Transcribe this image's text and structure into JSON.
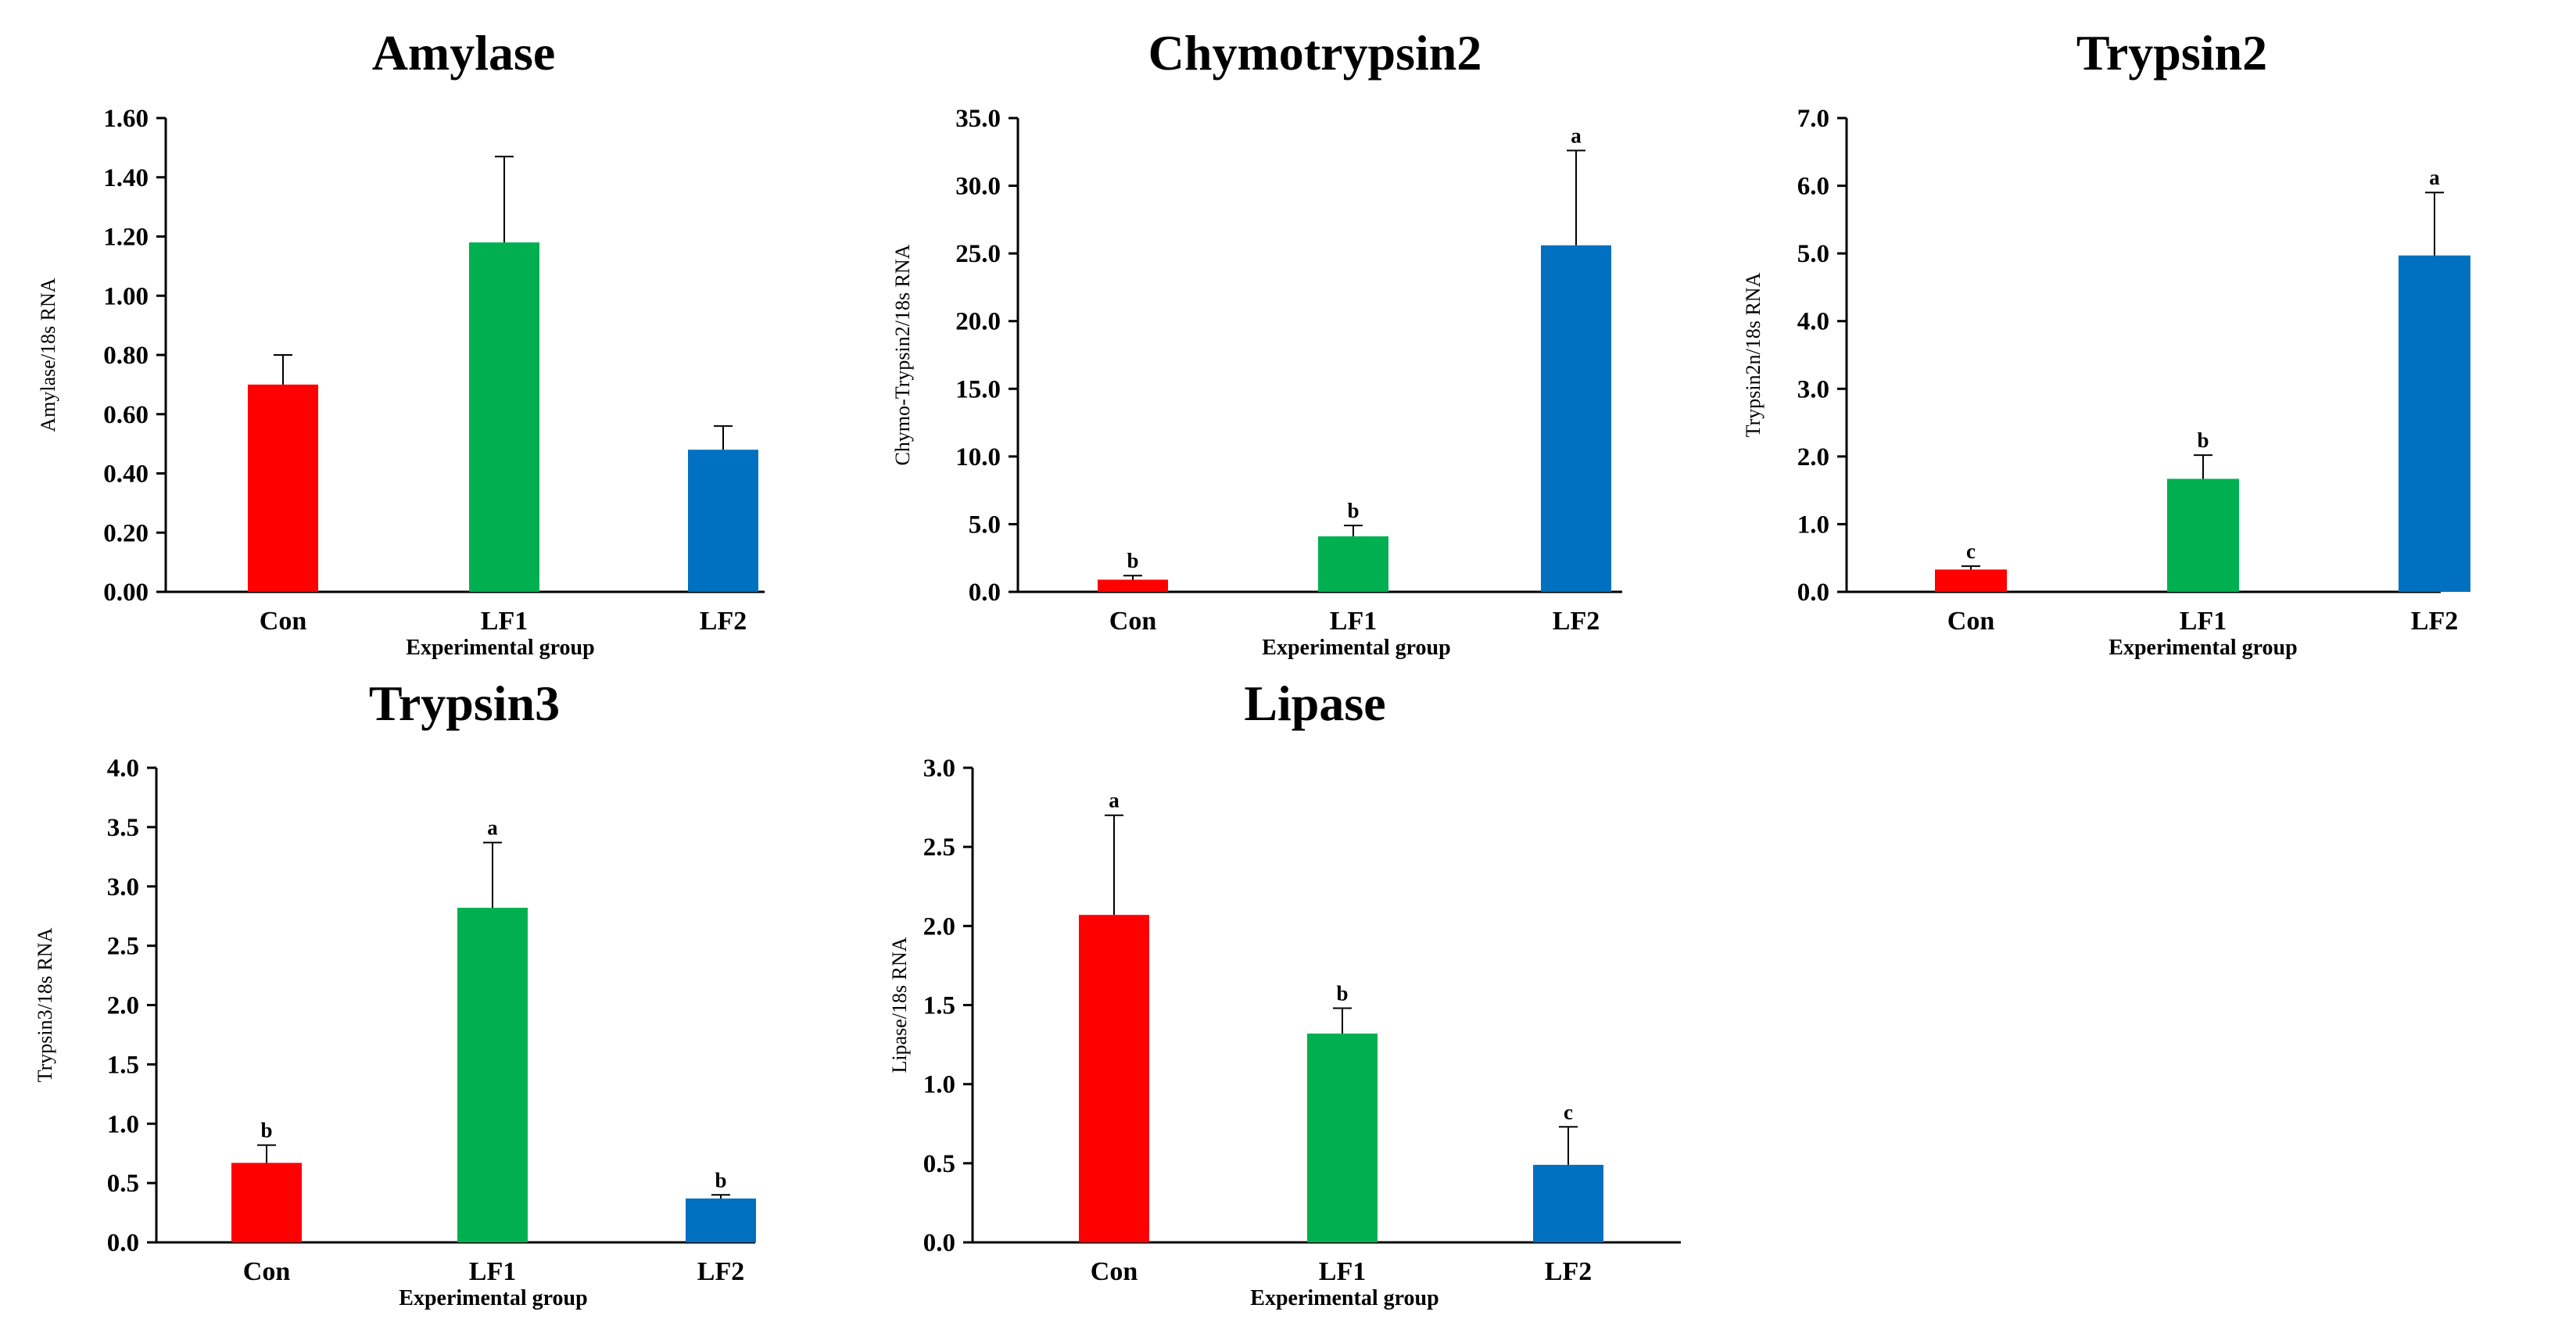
{
  "chart_data": [
    {
      "type": "bar",
      "title": "Amylase",
      "ylabel": "Amylase/18s RNA",
      "xlabel": "Experimental group",
      "categories": [
        "Con",
        "LF1",
        "LF2"
      ],
      "values": [
        0.7,
        1.18,
        0.48
      ],
      "errors": [
        0.1,
        0.29,
        0.08
      ],
      "sig_labels": [
        "",
        "",
        ""
      ],
      "ylim": [
        0,
        1.6
      ],
      "yticks": [
        "0.00",
        "0.20",
        "0.40",
        "0.60",
        "0.80",
        "1.00",
        "1.20",
        "1.40",
        "1.60"
      ],
      "colors": [
        "#ff0000",
        "#00b050",
        "#0070c0"
      ]
    },
    {
      "type": "bar",
      "title": "Chymotrypsin2",
      "ylabel": "Chymo-Trypsin2/18s RNA",
      "xlabel": "Experimental group",
      "categories": [
        "Con",
        "LF1",
        "LF2"
      ],
      "values": [
        0.9,
        4.1,
        25.6
      ],
      "errors": [
        0.3,
        0.8,
        7.0
      ],
      "sig_labels": [
        "b",
        "b",
        "a"
      ],
      "ylim": [
        0,
        35
      ],
      "yticks": [
        "0.0",
        "5.0",
        "10.0",
        "15.0",
        "20.0",
        "25.0",
        "30.0",
        "35.0"
      ],
      "colors": [
        "#ff0000",
        "#00b050",
        "#0070c0"
      ]
    },
    {
      "type": "bar",
      "title": "Trypsin2",
      "ylabel": "Trypsin2n/18s RNA",
      "xlabel": "Experimental group",
      "categories": [
        "Con",
        "LF1",
        "LF2"
      ],
      "values": [
        0.33,
        1.67,
        4.97
      ],
      "errors": [
        0.05,
        0.35,
        0.93
      ],
      "sig_labels": [
        "c",
        "b",
        "a"
      ],
      "ylim": [
        0,
        7
      ],
      "yticks": [
        "0.0",
        "1.0",
        "2.0",
        "3.0",
        "4.0",
        "5.0",
        "6.0",
        "7.0"
      ],
      "colors": [
        "#ff0000",
        "#00b050",
        "#0070c0"
      ]
    },
    {
      "type": "bar",
      "title": "Trypsin3",
      "ylabel": "Trypsin3/18s RNA",
      "xlabel": "Experimental group",
      "categories": [
        "Con",
        "LF1",
        "LF2"
      ],
      "values": [
        0.67,
        2.82,
        0.37
      ],
      "errors": [
        0.15,
        0.55,
        0.03
      ],
      "sig_labels": [
        "b",
        "a",
        "b"
      ],
      "ylim": [
        0,
        4
      ],
      "yticks": [
        "0.0",
        "0.5",
        "1.0",
        "1.5",
        "2.0",
        "2.5",
        "3.0",
        "3.5",
        "4.0"
      ],
      "colors": [
        "#ff0000",
        "#00b050",
        "#0070c0"
      ]
    },
    {
      "type": "bar",
      "title": "Lipase",
      "ylabel": "Lipase/18s RNA",
      "xlabel": "Experimental group",
      "categories": [
        "Con",
        "LF1",
        "LF2"
      ],
      "values": [
        2.07,
        1.32,
        0.49
      ],
      "errors": [
        0.63,
        0.16,
        0.24
      ],
      "sig_labels": [
        "a",
        "b",
        "c"
      ],
      "ylim": [
        0,
        3
      ],
      "yticks": [
        "0.0",
        "0.5",
        "1.0",
        "1.5",
        "2.0",
        "2.5",
        "3.0"
      ],
      "colors": [
        "#ff0000",
        "#00b050",
        "#0070c0"
      ]
    }
  ]
}
